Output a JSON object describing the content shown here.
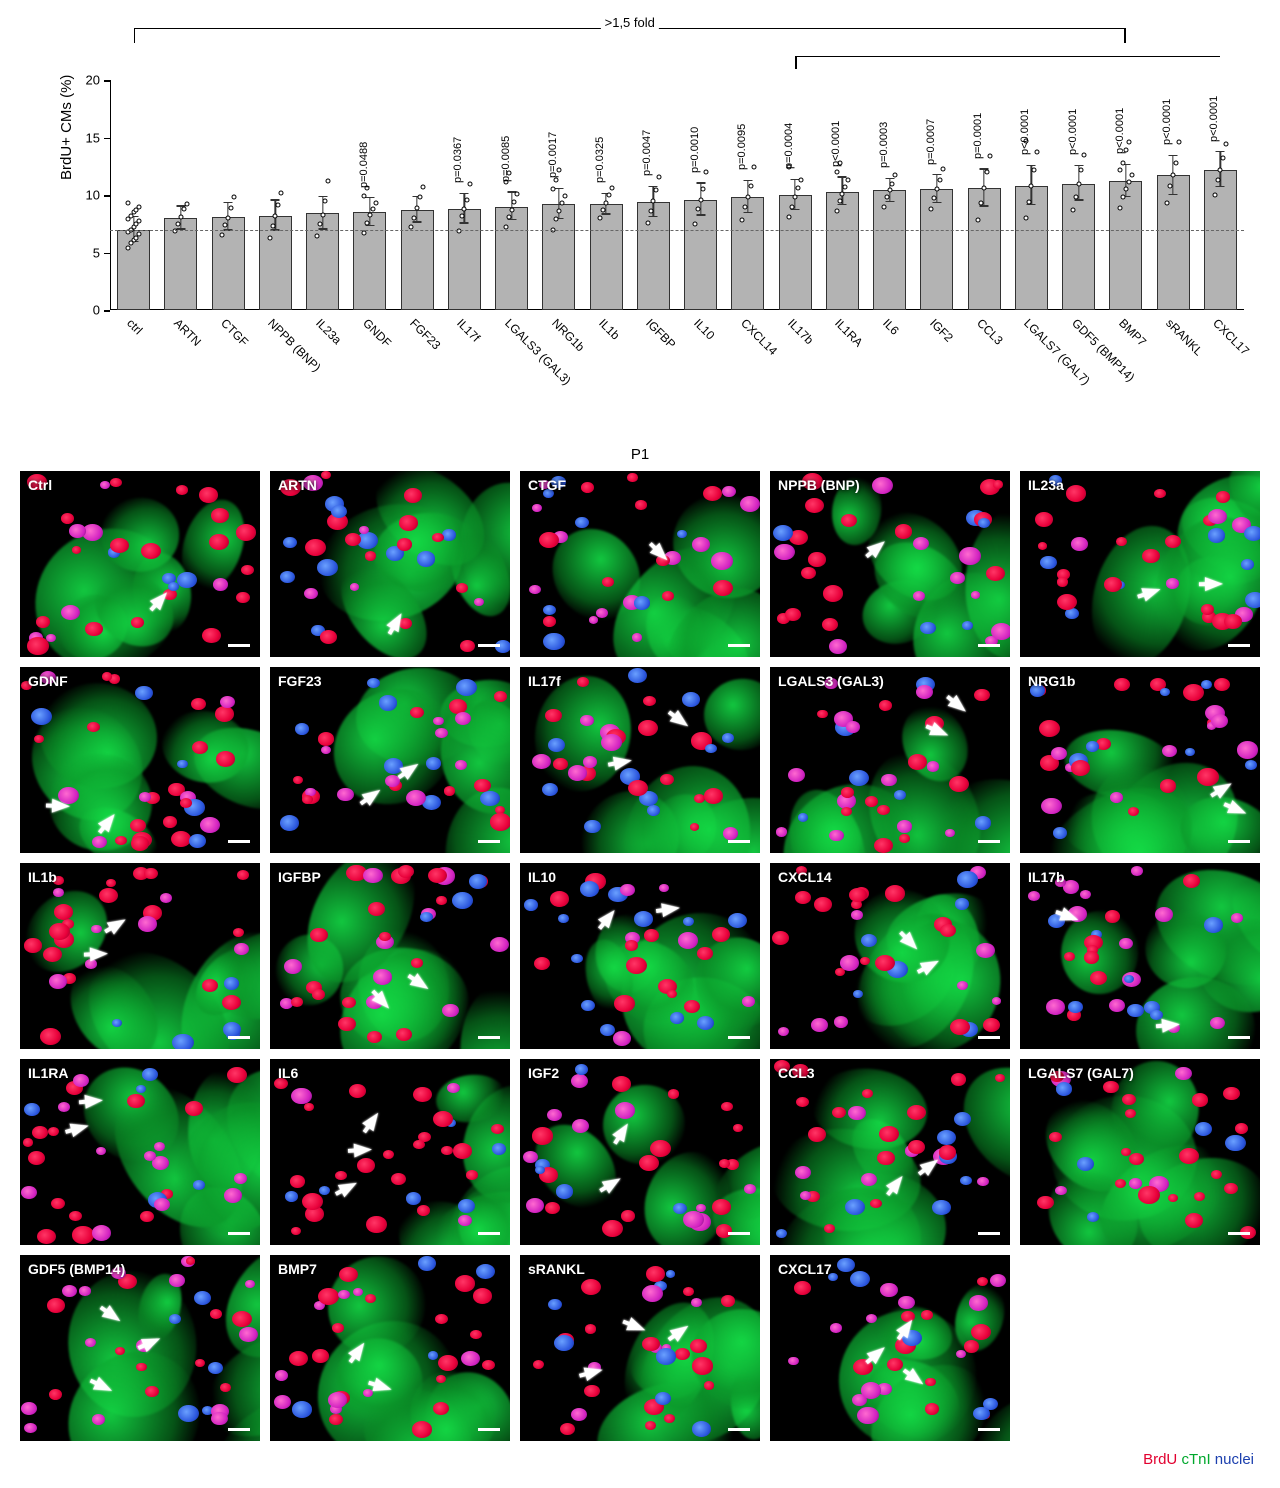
{
  "chart": {
    "type": "bar",
    "ylabel": "BrdU+ CMs (%)",
    "ylim": [
      0,
      20
    ],
    "yticks": [
      0,
      5,
      10,
      15,
      20
    ],
    "ref_line": 7.0,
    "bar_fill": "#b3b3b3",
    "bar_stroke": "#333333",
    "err_color": "#333333",
    "scatter_stroke": "#000000",
    "fold_label": ">1,5 fold",
    "fold_span_bars": [
      0,
      21
    ],
    "fold_sub_span_bars": [
      14,
      24
    ],
    "label_fontsize": 15,
    "tick_fontsize": 13,
    "pval_fontsize": 11,
    "xlabel_fontsize": 12,
    "bars": [
      {
        "name": "ctrl",
        "mean": 7.0,
        "err": 1.1,
        "p": "",
        "points": [
          5.4,
          5.8,
          6.1,
          6.3,
          6.6,
          6.8,
          7.0,
          7.2,
          7.5,
          7.7,
          7.9,
          8.2,
          8.5,
          8.7,
          9.0,
          9.3
        ]
      },
      {
        "name": "ARTN",
        "mean": 8.0,
        "err": 1.0,
        "p": "",
        "points": [
          6.9,
          7.5,
          8.1,
          8.8,
          9.2
        ]
      },
      {
        "name": "CTGF",
        "mean": 8.1,
        "err": 1.2,
        "p": "",
        "points": [
          6.5,
          7.4,
          8.0,
          8.9,
          9.8
        ]
      },
      {
        "name": "NPPB (BNP)",
        "mean": 8.2,
        "err": 1.3,
        "p": "",
        "points": [
          6.3,
          7.3,
          8.2,
          9.1,
          10.2
        ]
      },
      {
        "name": "IL23a",
        "mean": 8.4,
        "err": 1.4,
        "p": "",
        "points": [
          6.4,
          7.5,
          8.3,
          9.5,
          11.2
        ]
      },
      {
        "name": "GNDF",
        "mean": 8.5,
        "err": 1.2,
        "p": "p=0.0488",
        "points": [
          6.7,
          7.6,
          8.3,
          8.8,
          9.3,
          9.9,
          10.6
        ]
      },
      {
        "name": "FGF23",
        "mean": 8.7,
        "err": 1.1,
        "p": "",
        "points": [
          7.2,
          8.0,
          8.9,
          9.8,
          10.7
        ]
      },
      {
        "name": "IL17f",
        "mean": 8.8,
        "err": 1.3,
        "p": "p=0.0367",
        "points": [
          6.9,
          8.2,
          8.8,
          9.6,
          11.0
        ]
      },
      {
        "name": "LGALS3 (GAL3)",
        "mean": 9.0,
        "err": 1.2,
        "p": "p=0.0085",
        "points": [
          7.2,
          8.1,
          8.7,
          9.4,
          10.1,
          11.1,
          11.9
        ]
      },
      {
        "name": "NRG1b",
        "mean": 9.2,
        "err": 1.3,
        "p": "p=0.0017",
        "points": [
          7.0,
          7.9,
          8.6,
          9.3,
          9.9,
          10.5,
          11.3,
          12.2
        ]
      },
      {
        "name": "IL1b",
        "mean": 9.2,
        "err": 0.9,
        "p": "p=0.0325",
        "points": [
          8.0,
          8.7,
          9.3,
          10.0,
          10.6
        ]
      },
      {
        "name": "IGFBP",
        "mean": 9.4,
        "err": 1.3,
        "p": "p=0.0047",
        "points": [
          7.6,
          8.6,
          9.5,
          10.4,
          11.6
        ]
      },
      {
        "name": "IL10",
        "mean": 9.6,
        "err": 1.4,
        "p": "p=0.0010",
        "points": [
          7.5,
          8.8,
          9.6,
          10.5,
          12.0
        ]
      },
      {
        "name": "CXCL14",
        "mean": 9.8,
        "err": 1.4,
        "p": "p=0.0095",
        "points": [
          7.8,
          9.0,
          9.8,
          10.8,
          12.4
        ]
      },
      {
        "name": "IL17b",
        "mean": 10.0,
        "err": 1.3,
        "p": "p=0.0004",
        "points": [
          8.1,
          9.0,
          9.8,
          10.6,
          11.3,
          12.4
        ]
      },
      {
        "name": "IL1RA",
        "mean": 10.3,
        "err": 1.2,
        "p": "p<0.0001",
        "points": [
          8.6,
          9.5,
          10.1,
          10.7,
          11.3,
          12.0,
          12.8
        ]
      },
      {
        "name": "IL6",
        "mean": 10.4,
        "err": 1.0,
        "p": "p=0.0003",
        "points": [
          9.0,
          9.8,
          10.4,
          11.0,
          11.7
        ]
      },
      {
        "name": "IGF2",
        "mean": 10.5,
        "err": 1.2,
        "p": "p=0.0007",
        "points": [
          8.8,
          9.7,
          10.5,
          11.3,
          12.3
        ]
      },
      {
        "name": "CCL3",
        "mean": 10.6,
        "err": 1.6,
        "p": "p=0.0001",
        "points": [
          7.8,
          9.3,
          10.6,
          12.0,
          13.4
        ]
      },
      {
        "name": "LGALS7 (GAL7)",
        "mean": 10.8,
        "err": 1.7,
        "p": "p<0.0001",
        "points": [
          8.0,
          9.4,
          10.8,
          12.2,
          13.7,
          14.7
        ]
      },
      {
        "name": "GDF5 (BMP14)",
        "mean": 11.0,
        "err": 1.5,
        "p": "p<0.0001",
        "points": [
          8.7,
          9.8,
          11.0,
          12.2,
          13.5
        ]
      },
      {
        "name": "BMP7",
        "mean": 11.2,
        "err": 1.4,
        "p": "p<0.0001",
        "points": [
          8.9,
          9.8,
          10.5,
          11.1,
          11.7,
          12.2,
          12.8,
          13.9,
          14.6
        ]
      },
      {
        "name": "sRANKL",
        "mean": 11.7,
        "err": 1.7,
        "p": "p<0.0001",
        "points": [
          9.3,
          10.8,
          11.7,
          12.8,
          14.6
        ]
      },
      {
        "name": "CXCL17",
        "mean": 12.2,
        "err": 1.5,
        "p": "p<0.0001",
        "points": [
          10.0,
          11.3,
          12.2,
          13.2,
          14.4
        ]
      }
    ]
  },
  "grid": {
    "title": "P1",
    "columns": 5,
    "panel_label_color": "#ffffff",
    "scalebar_color": "#ffffff",
    "arrow_color": "#ffffff",
    "panels": [
      {
        "label": "Ctrl",
        "arrows": [
          [
            56,
            64
          ]
        ]
      },
      {
        "label": "ARTN",
        "arrows": [
          [
            50,
            76
          ]
        ]
      },
      {
        "label": "CTGF",
        "arrows": [
          [
            56,
            40
          ]
        ]
      },
      {
        "label": "NPPB (BNP)",
        "arrows": [
          [
            42,
            36
          ]
        ]
      },
      {
        "label": "IL23a",
        "arrows": [
          [
            52,
            60
          ],
          [
            78,
            56
          ]
        ]
      },
      {
        "label": "GDNF",
        "arrows": [
          [
            14,
            70
          ],
          [
            34,
            78
          ]
        ]
      },
      {
        "label": "FGF23",
        "arrows": [
          [
            40,
            64
          ],
          [
            56,
            50
          ]
        ]
      },
      {
        "label": "IL17f",
        "arrows": [
          [
            40,
            46
          ],
          [
            64,
            24
          ]
        ]
      },
      {
        "label": "LGALS3 (GAL3)",
        "arrows": [
          [
            68,
            30
          ],
          [
            76,
            16
          ]
        ]
      },
      {
        "label": "NRG1b",
        "arrows": [
          [
            82,
            60
          ],
          [
            88,
            72
          ]
        ]
      },
      {
        "label": "IL1b",
        "arrows": [
          [
            38,
            28
          ],
          [
            30,
            44
          ]
        ]
      },
      {
        "label": "IGFBP",
        "arrows": [
          [
            44,
            70
          ],
          [
            60,
            60
          ]
        ]
      },
      {
        "label": "IL10",
        "arrows": [
          [
            34,
            24
          ],
          [
            60,
            20
          ]
        ]
      },
      {
        "label": "CXCL14",
        "arrows": [
          [
            56,
            38
          ],
          [
            64,
            50
          ]
        ]
      },
      {
        "label": "IL17b",
        "arrows": [
          [
            18,
            24
          ],
          [
            60,
            82
          ]
        ]
      },
      {
        "label": "IL1RA",
        "arrows": [
          [
            28,
            18
          ],
          [
            22,
            32
          ]
        ]
      },
      {
        "label": "IL6",
        "arrows": [
          [
            40,
            28
          ],
          [
            36,
            44
          ],
          [
            30,
            64
          ]
        ]
      },
      {
        "label": "IGF2",
        "arrows": [
          [
            40,
            34
          ],
          [
            36,
            62
          ]
        ]
      },
      {
        "label": "CCL3",
        "arrows": [
          [
            50,
            62
          ],
          [
            64,
            52
          ]
        ]
      },
      {
        "label": "LGALS7 (GAL7)",
        "arrows": []
      },
      {
        "label": "GDF5 (BMP14)",
        "arrows": [
          [
            36,
            28
          ],
          [
            52,
            42
          ],
          [
            32,
            66
          ]
        ]
      },
      {
        "label": "BMP7",
        "arrows": [
          [
            34,
            46
          ],
          [
            44,
            66
          ]
        ]
      },
      {
        "label": "sRANKL",
        "arrows": [
          [
            46,
            34
          ],
          [
            64,
            36
          ],
          [
            28,
            58
          ]
        ]
      },
      {
        "label": "CXCL17",
        "arrows": [
          [
            54,
            34
          ],
          [
            42,
            48
          ],
          [
            58,
            62
          ]
        ]
      }
    ]
  },
  "legend": {
    "r": "BrdU",
    "g": "cTnI",
    "b": "nuclei"
  }
}
